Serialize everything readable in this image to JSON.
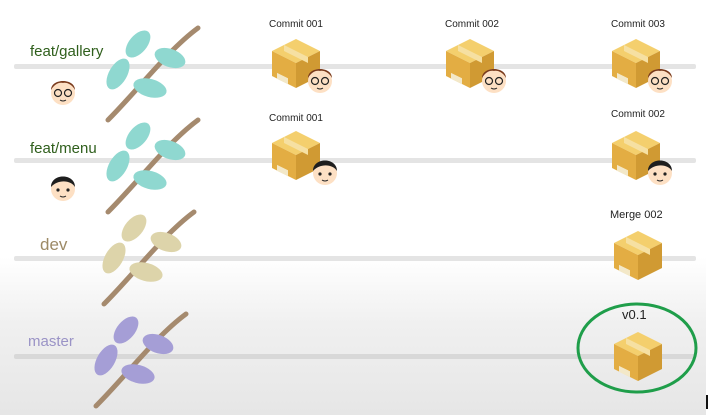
{
  "branches": [
    {
      "name": "feat/gallery",
      "color": "#2f5f1c"
    },
    {
      "name": "feat/menu",
      "color": "#2f5f1c"
    },
    {
      "name": "dev",
      "color": "#9d8a66"
    },
    {
      "name": "master",
      "color": "#9a93c6"
    }
  ],
  "commits": {
    "gallery_c1": "Commit 001",
    "gallery_c2": "Commit 002",
    "gallery_c3": "Commit 003",
    "menu_c1": "Commit 001",
    "menu_c2": "Commit 002",
    "dev_merge": "Merge 002",
    "master_tag": "v0.1"
  },
  "colors": {
    "gallery_leaves": "#8fd8d0",
    "menu_leaves": "#8fd8d0",
    "dev_leaves": "#ddd4aa",
    "master_leaves": "#a59ed6",
    "stem": "#a58a6e",
    "box": "#e8b84e",
    "highlight_ring": "#1f9e4a"
  },
  "icons": [
    "branch-leaves-icon",
    "developer-face-icon",
    "commit-box-icon"
  ]
}
